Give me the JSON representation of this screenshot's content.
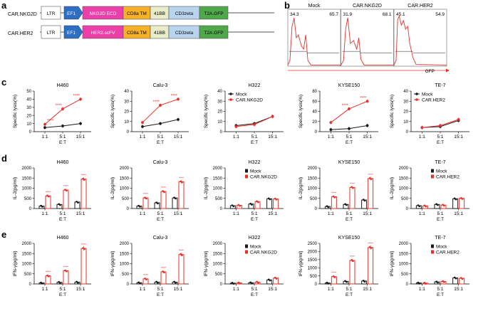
{
  "panel_labels": {
    "a": "a",
    "b": "b",
    "c": "c",
    "d": "d",
    "e": "e"
  },
  "constructs": [
    {
      "name": "CAR.NKG2D",
      "blocks": [
        {
          "label": "LTR",
          "color": "#ffffff"
        },
        {
          "label": "EF1",
          "color": "#2e6fc6",
          "arrow": true
        },
        {
          "label": "NKG2D ECD",
          "color": "#ec3fa8"
        },
        {
          "label": "CD8a TM",
          "color": "#f6b128"
        },
        {
          "label": "41BB",
          "color": "#e8edc8"
        },
        {
          "label": "CD3zeta",
          "color": "#b8d4ee"
        },
        {
          "label": "T2A.GFP",
          "color": "#4fa84a"
        }
      ]
    },
    {
      "name": "CAR.HER2",
      "blocks": [
        {
          "label": "LTR",
          "color": "#ffffff"
        },
        {
          "label": "EF1",
          "color": "#2e6fc6",
          "arrow": true
        },
        {
          "label": "HER2.scFV",
          "color": "#ec3fa8"
        },
        {
          "label": "CD8a TM",
          "color": "#f6b128"
        },
        {
          "label": "41BB",
          "color": "#e8edc8"
        },
        {
          "label": "CD3zeta",
          "color": "#b8d4ee"
        },
        {
          "label": "T2A.GFP",
          "color": "#4fa84a"
        }
      ]
    }
  ],
  "flow": {
    "xlabel": "GFP",
    "panels": [
      {
        "title": "Mock",
        "left_pct": "34.3",
        "right_pct": "65.7"
      },
      {
        "title": "CAR.NKG2D",
        "left_pct": "31.9",
        "right_pct": "68.1"
      },
      {
        "title": "CAR.HER2",
        "left_pct": "45.1",
        "right_pct": "54.9"
      }
    ]
  },
  "legends": {
    "nkg2d": [
      "Mock",
      "CAR.NKG2D"
    ],
    "her2": [
      "Mock",
      "CAR.HER2"
    ]
  },
  "colors": {
    "mock": "#1a1a1a",
    "car": "#e8302a"
  },
  "chart_data": [
    {
      "type": "line",
      "panel": "c",
      "title": "H460",
      "x": [
        "1:1",
        "5:1",
        "15:1"
      ],
      "xlabel": "E:T",
      "ylabel": "Specific lysis(%)",
      "ylim": [
        0,
        50
      ],
      "yticks": [
        0,
        10,
        20,
        30,
        40,
        50
      ],
      "series": [
        {
          "name": "Mock",
          "values": [
            5,
            7,
            10
          ]
        },
        {
          "name": "CAR.NKG2D",
          "values": [
            9,
            28,
            40
          ]
        }
      ],
      "annotations": [
        "****",
        "****",
        "****"
      ]
    },
    {
      "type": "line",
      "panel": "c",
      "title": "Calu-3",
      "x": [
        "1:1",
        "5:1",
        "15:1"
      ],
      "xlabel": "E:T",
      "ylabel": "Specific lysis(%)",
      "ylim": [
        0,
        40
      ],
      "yticks": [
        0,
        10,
        20,
        30,
        40
      ],
      "series": [
        {
          "name": "Mock",
          "values": [
            5,
            8,
            12
          ]
        },
        {
          "name": "CAR.NKG2D",
          "values": [
            9,
            26,
            32
          ]
        }
      ],
      "annotations": [
        "",
        "****",
        "****"
      ]
    },
    {
      "type": "line",
      "panel": "c",
      "title": "H322",
      "x": [
        "1:1",
        "5:1",
        "15:1"
      ],
      "xlabel": "E:T",
      "ylabel": "Specific lysis(%)",
      "ylim": [
        0,
        40
      ],
      "yticks": [
        0,
        10,
        20,
        30,
        40
      ],
      "legend": "nkg2d",
      "series": [
        {
          "name": "Mock",
          "values": [
            6,
            8,
            15
          ]
        },
        {
          "name": "CAR.NKG2D",
          "values": [
            5,
            7,
            15
          ]
        }
      ],
      "annotations": [
        "",
        "",
        ""
      ]
    },
    {
      "type": "line",
      "panel": "c",
      "title": "KYSE150",
      "x": [
        "1:1",
        "5:1",
        "15:1"
      ],
      "xlabel": "E:T",
      "ylabel": "Specific lysis(%)",
      "ylim": [
        0,
        80
      ],
      "yticks": [
        0,
        20,
        40,
        60,
        80
      ],
      "series": [
        {
          "name": "Mock",
          "values": [
            4,
            6,
            12
          ]
        },
        {
          "name": "CAR.NKG2D",
          "values": [
            18,
            45,
            60
          ]
        }
      ],
      "annotations": [
        "",
        "****",
        "****"
      ]
    },
    {
      "type": "line",
      "panel": "c",
      "title": "TE-7",
      "x": [
        "1:1",
        "5:1",
        "15:1"
      ],
      "xlabel": "E:T",
      "ylabel": "Specific lysis(%)",
      "ylim": [
        0,
        40
      ],
      "yticks": [
        0,
        10,
        20,
        30,
        40
      ],
      "legend": "her2",
      "series": [
        {
          "name": "Mock",
          "values": [
            4,
            5,
            11
          ]
        },
        {
          "name": "CAR.HER2",
          "values": [
            4,
            6,
            12
          ]
        }
      ],
      "annotations": [
        "",
        "",
        ""
      ]
    },
    {
      "type": "bar",
      "panel": "d",
      "title": "H460",
      "categories": [
        "1:1",
        "5:1",
        "15:1"
      ],
      "xlabel": "E:T",
      "ylabel": "IL-2(pg/ml)",
      "ylim": [
        0,
        2000
      ],
      "yticks": [
        0,
        500,
        1000,
        1500,
        2000
      ],
      "series": [
        {
          "name": "Mock",
          "values": [
            120,
            200,
            320
          ]
        },
        {
          "name": "CAR.NKG2D",
          "values": [
            620,
            910,
            1450
          ]
        }
      ],
      "annotations": [
        "****",
        "****",
        "****"
      ]
    },
    {
      "type": "bar",
      "panel": "d",
      "title": "Calu-3",
      "categories": [
        "1:1",
        "5:1",
        "15:1"
      ],
      "xlabel": "E:T",
      "ylabel": "IL-2(pg/ml)",
      "ylim": [
        0,
        2000
      ],
      "yticks": [
        0,
        500,
        1000,
        1500,
        2000
      ],
      "series": [
        {
          "name": "Mock",
          "values": [
            120,
            280,
            520
          ]
        },
        {
          "name": "CAR.NKG2D",
          "values": [
            520,
            840,
            1320
          ]
        }
      ],
      "annotations": [
        "****",
        "****",
        "****"
      ]
    },
    {
      "type": "bar",
      "panel": "d",
      "title": "H322",
      "categories": [
        "1:1",
        "5:1",
        "15:1"
      ],
      "xlabel": "E:T",
      "ylabel": "IL-2(pg/ml)",
      "ylim": [
        0,
        2000
      ],
      "yticks": [
        0,
        500,
        1000,
        1500,
        2000
      ],
      "legend": "nkg2d",
      "series": [
        {
          "name": "Mock",
          "values": [
            140,
            220,
            480
          ]
        },
        {
          "name": "CAR.NKG2D",
          "values": [
            160,
            340,
            470
          ]
        }
      ],
      "annotations": [
        "",
        "",
        ""
      ]
    },
    {
      "type": "bar",
      "panel": "d",
      "title": "KYSE150",
      "categories": [
        "1:1",
        "5:1",
        "15:1"
      ],
      "xlabel": "E:T",
      "ylabel": "IL-2(pg/ml)",
      "ylim": [
        0,
        2000
      ],
      "yticks": [
        0,
        500,
        1000,
        1500,
        2000
      ],
      "series": [
        {
          "name": "Mock",
          "values": [
            100,
            200,
            420
          ]
        },
        {
          "name": "CAR.NKG2D",
          "values": [
            580,
            1040,
            1480
          ]
        }
      ],
      "annotations": [
        "****",
        "****",
        "****"
      ]
    },
    {
      "type": "bar",
      "panel": "d",
      "title": "TE-7",
      "categories": [
        "1:1",
        "5:1",
        "15:1"
      ],
      "xlabel": "E:T",
      "ylabel": "IL-2(pg/ml)",
      "ylim": [
        0,
        2000
      ],
      "yticks": [
        0,
        500,
        1000,
        1500,
        2000
      ],
      "legend": "her2",
      "series": [
        {
          "name": "Mock",
          "values": [
            140,
            200,
            480
          ]
        },
        {
          "name": "CAR.HER2",
          "values": [
            130,
            170,
            500
          ]
        }
      ],
      "annotations": [
        "",
        "",
        ""
      ]
    },
    {
      "type": "bar",
      "panel": "e",
      "title": "H460",
      "categories": [
        "1:1",
        "5:1",
        "15:1"
      ],
      "xlabel": "E:T",
      "ylabel": "IFN-γ(pg/ml)",
      "ylim": [
        0,
        2000
      ],
      "yticks": [
        0,
        500,
        1000,
        1500,
        2000
      ],
      "series": [
        {
          "name": "Mock",
          "values": [
            50,
            80,
            90
          ]
        },
        {
          "name": "CAR.NKG2D",
          "values": [
            400,
            650,
            1750
          ]
        }
      ],
      "annotations": [
        "****",
        "****",
        "****"
      ]
    },
    {
      "type": "bar",
      "panel": "e",
      "title": "Calu-3",
      "categories": [
        "1:1",
        "5:1",
        "15:1"
      ],
      "xlabel": "E:T",
      "ylabel": "IFN-γ(pg/ml)",
      "ylim": [
        0,
        2000
      ],
      "yticks": [
        0,
        500,
        1000,
        1500,
        2000
      ],
      "series": [
        {
          "name": "Mock",
          "values": [
            60,
            90,
            90
          ]
        },
        {
          "name": "CAR.NKG2D",
          "values": [
            250,
            600,
            1450
          ]
        }
      ],
      "annotations": [
        "****",
        "****",
        "****"
      ]
    },
    {
      "type": "bar",
      "panel": "e",
      "title": "H322",
      "categories": [
        "1:1",
        "5:1",
        "15:1"
      ],
      "xlabel": "E:T",
      "ylabel": "IFN-γ(pg/ml)",
      "ylim": [
        0,
        2000
      ],
      "yticks": [
        0,
        500,
        1000,
        1500,
        2000
      ],
      "legend": "nkg2d",
      "series": [
        {
          "name": "Mock",
          "values": [
            40,
            60,
            200
          ]
        },
        {
          "name": "CAR.NKG2D",
          "values": [
            50,
            90,
            290
          ]
        }
      ],
      "annotations": [
        "",
        "",
        ""
      ]
    },
    {
      "type": "bar",
      "panel": "e",
      "title": "KYSE150",
      "categories": [
        "1:1",
        "5:1",
        "15:1"
      ],
      "xlabel": "E:T",
      "ylabel": "IFN-γ(pg/ml)",
      "ylim": [
        0,
        2500
      ],
      "yticks": [
        0,
        500,
        1000,
        1500,
        2000,
        2500
      ],
      "series": [
        {
          "name": "Mock",
          "values": [
            60,
            160,
            180
          ]
        },
        {
          "name": "CAR.NKG2D",
          "values": [
            450,
            1450,
            2250
          ]
        }
      ],
      "annotations": [
        "****",
        "****",
        "****"
      ]
    },
    {
      "type": "bar",
      "panel": "e",
      "title": "TE-7",
      "categories": [
        "1:1",
        "5:1",
        "15:1"
      ],
      "xlabel": "E:T",
      "ylabel": "IFN-γ(pg/ml)",
      "ylim": [
        0,
        2000
      ],
      "yticks": [
        0,
        500,
        1000,
        1500,
        2000
      ],
      "legend": "her2",
      "series": [
        {
          "name": "Mock",
          "values": [
            50,
            100,
            300
          ]
        },
        {
          "name": "CAR.HER2",
          "values": [
            40,
            120,
            280
          ]
        }
      ],
      "annotations": [
        "",
        "",
        ""
      ]
    }
  ]
}
